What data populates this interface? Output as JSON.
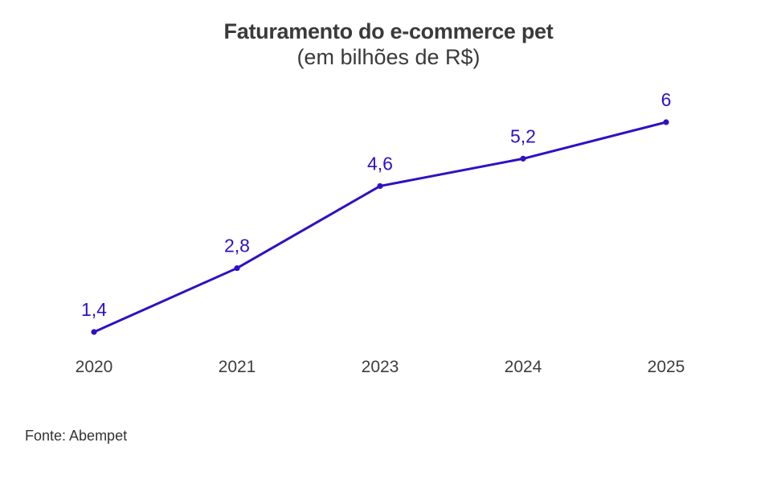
{
  "header": {
    "title": "Faturamento do e-commerce pet",
    "subtitle": "(em bilhões de R$)"
  },
  "source": "Fonte: Abempet",
  "colors": {
    "line": "#2c12c4",
    "label": "#2c12c4",
    "tick": "#3d3d3d"
  },
  "chart_data": {
    "type": "line",
    "categories": [
      "2020",
      "2021",
      "2023",
      "2024",
      "2025"
    ],
    "values": [
      1.4,
      2.8,
      4.6,
      5.2,
      6
    ],
    "data_labels": [
      "1,4",
      "2,8",
      "4,6",
      "5,2",
      "6"
    ],
    "title": "Faturamento do e-commerce pet",
    "subtitle": "(em bilhões de R$)",
    "ylim": [
      0.85,
      6.8
    ],
    "grid": false,
    "legend": "none"
  }
}
